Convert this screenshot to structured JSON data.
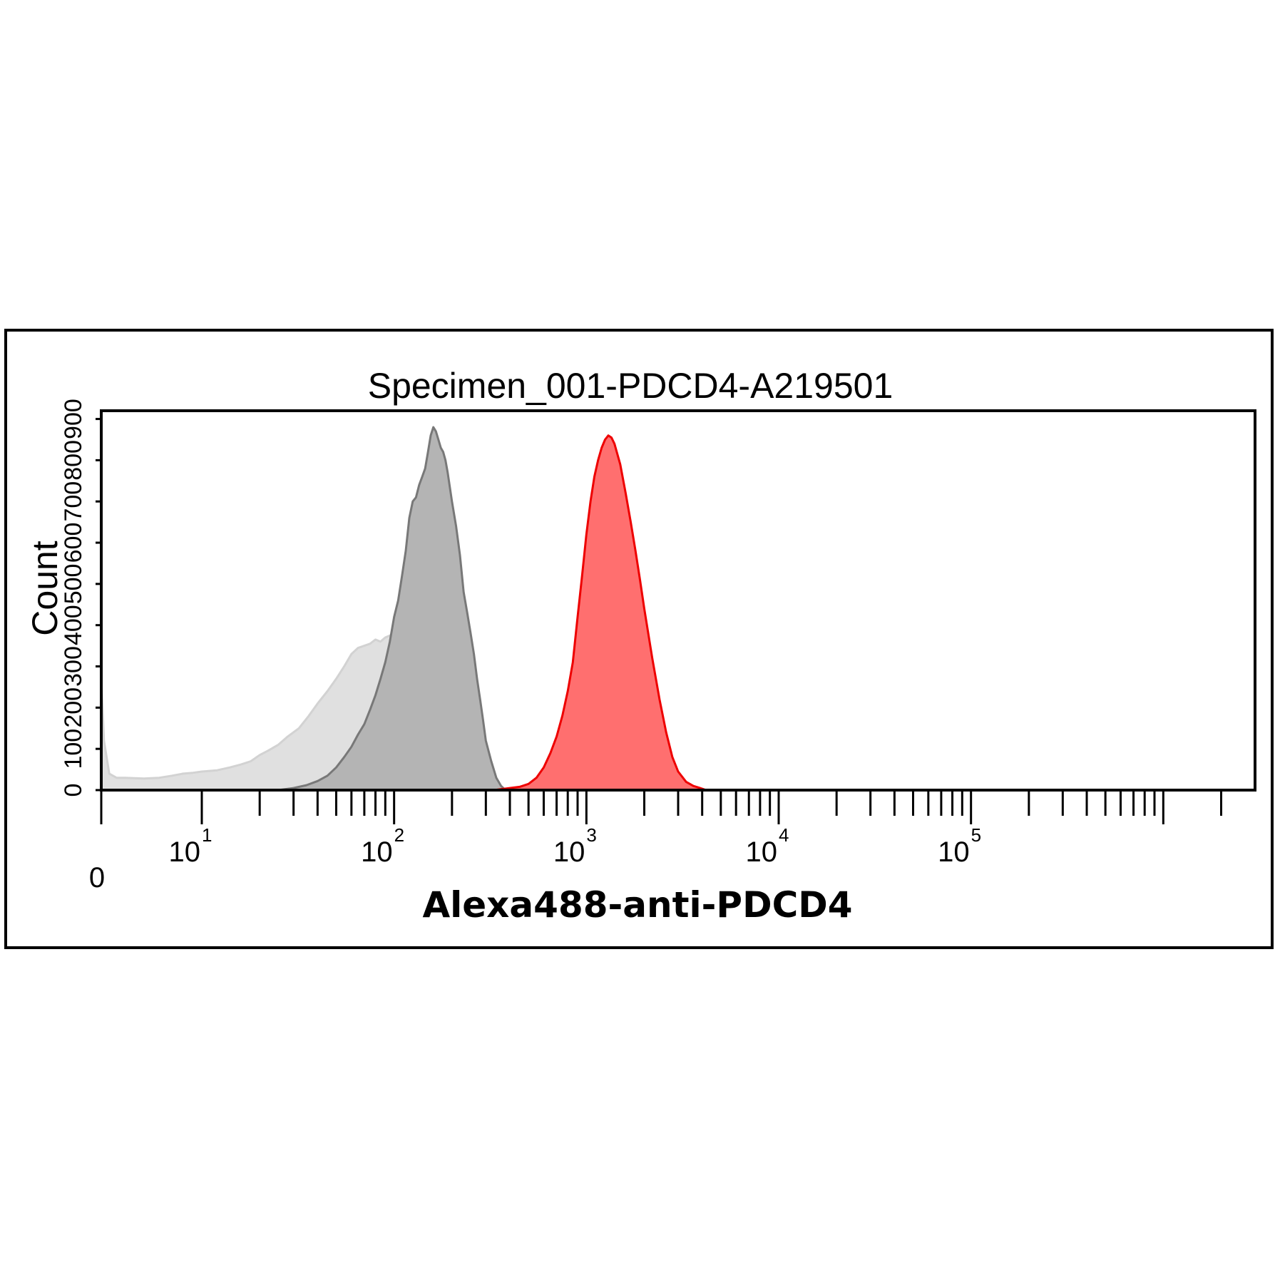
{
  "chart_data": {
    "type": "area",
    "title": "Specimen_001-PDCD4-A219501",
    "xlabel": "Alexa488-anti-PDCD4",
    "ylabel": "Count",
    "x_scale": "log",
    "x_zero_label": "0",
    "xlim": [
      3,
      3000000
    ],
    "xticks": [
      {
        "base": "10",
        "exp": "1",
        "value": 10
      },
      {
        "base": "10",
        "exp": "2",
        "value": 100
      },
      {
        "base": "10",
        "exp": "3",
        "value": 1000
      },
      {
        "base": "10",
        "exp": "4",
        "value": 10000
      },
      {
        "base": "10",
        "exp": "5",
        "value": 100000
      }
    ],
    "yticks": [
      "0",
      "100",
      "200",
      "300",
      "400",
      "500",
      "600",
      "700",
      "800",
      "900"
    ],
    "ylim": [
      0,
      920
    ],
    "grid": false,
    "legend": "none",
    "series": [
      {
        "color": "#e0e0e0",
        "stroke": "#d2d2d2",
        "x": [
          3,
          3.1,
          3.3,
          3.6,
          4,
          5,
          6,
          7,
          8,
          9,
          10,
          12,
          14,
          16,
          18,
          20,
          22,
          25,
          28,
          32,
          36,
          40,
          45,
          50,
          55,
          60,
          65,
          70,
          75,
          80,
          85,
          90,
          95,
          100,
          110,
          120,
          130,
          140,
          150,
          160,
          170,
          180
        ],
        "y": [
          270,
          120,
          40,
          30,
          30,
          28,
          30,
          35,
          40,
          42,
          45,
          48,
          55,
          62,
          70,
          85,
          95,
          110,
          130,
          150,
          180,
          210,
          240,
          270,
          300,
          330,
          345,
          350,
          355,
          365,
          360,
          370,
          375,
          360,
          300,
          220,
          150,
          90,
          50,
          25,
          10,
          0
        ]
      },
      {
        "color": "#b4b4b4",
        "stroke": "#787878",
        "x": [
          25,
          30,
          35,
          40,
          45,
          50,
          55,
          60,
          65,
          70,
          75,
          80,
          85,
          90,
          95,
          100,
          105,
          110,
          115,
          120,
          125,
          130,
          135,
          140,
          145,
          150,
          155,
          160,
          165,
          170,
          175,
          180,
          185,
          190,
          200,
          210,
          220,
          230,
          240,
          250,
          260,
          270,
          280,
          290,
          300,
          320,
          340,
          360,
          380
        ],
        "y": [
          0,
          5,
          12,
          22,
          35,
          55,
          80,
          105,
          135,
          160,
          195,
          230,
          270,
          310,
          360,
          420,
          460,
          520,
          580,
          660,
          700,
          710,
          740,
          760,
          780,
          820,
          860,
          880,
          870,
          850,
          830,
          820,
          800,
          770,
          700,
          640,
          570,
          480,
          430,
          380,
          330,
          270,
          220,
          170,
          120,
          70,
          30,
          10,
          0
        ]
      },
      {
        "color": "#ff6f6f",
        "stroke": "#ee0000",
        "x": [
          330,
          400,
          450,
          500,
          550,
          600,
          650,
          700,
          750,
          800,
          850,
          900,
          950,
          1000,
          1050,
          1100,
          1150,
          1200,
          1250,
          1300,
          1350,
          1400,
          1500,
          1600,
          1700,
          1800,
          1900,
          2000,
          2200,
          2400,
          2600,
          2800,
          3000,
          3300,
          3600,
          3900,
          4200
        ],
        "y": [
          0,
          5,
          8,
          15,
          30,
          55,
          90,
          130,
          180,
          240,
          310,
          420,
          520,
          620,
          700,
          760,
          800,
          830,
          850,
          860,
          855,
          840,
          790,
          720,
          650,
          580,
          510,
          440,
          320,
          220,
          140,
          80,
          45,
          20,
          10,
          5,
          0
        ]
      }
    ]
  }
}
